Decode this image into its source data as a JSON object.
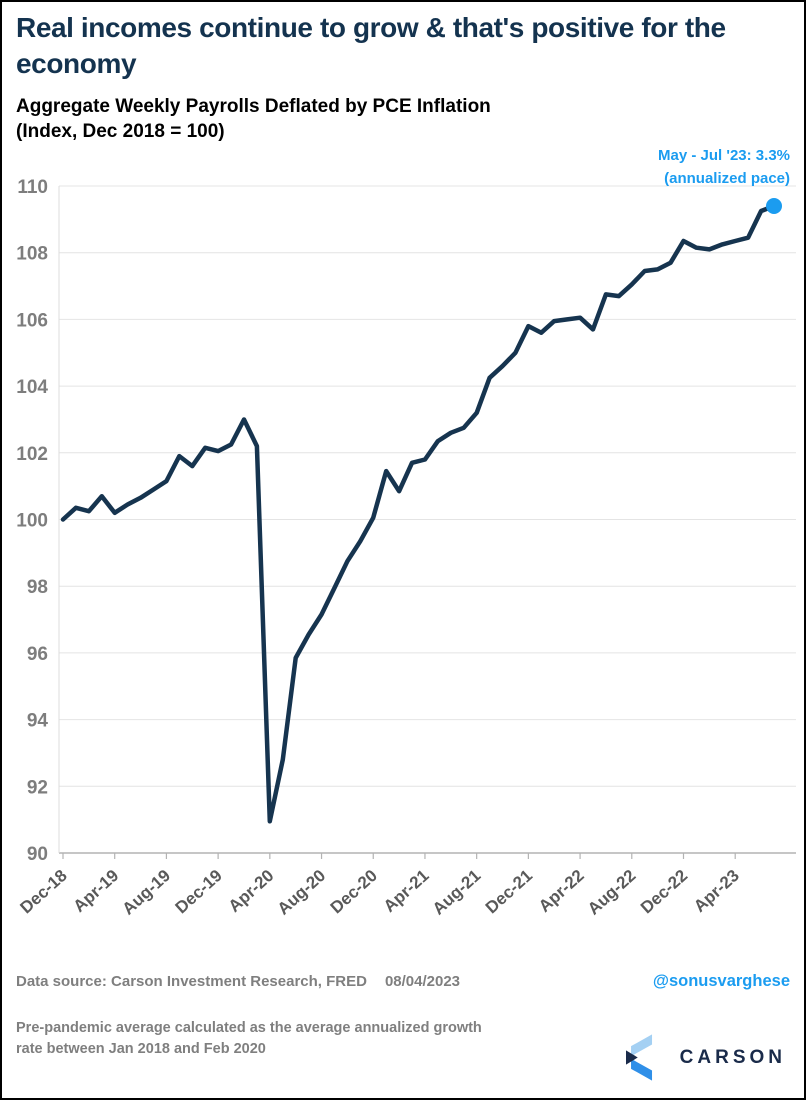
{
  "header": {
    "title": "Real incomes continue to grow & that's positive for the economy"
  },
  "chart": {
    "subtitle_line1": "Aggregate Weekly Payrolls Deflated by PCE Inflation",
    "subtitle_line2": "(Index, Dec 2018 = 100)",
    "annotation_line1": "May - Jul '23: 3.3%",
    "annotation_line2": "(annualized pace)"
  },
  "chart_data": {
    "type": "line",
    "title": "Aggregate Weekly Payrolls Deflated by PCE Inflation (Index, Dec 2018 = 100)",
    "x": [
      "Dec-18",
      "Jan-19",
      "Feb-19",
      "Mar-19",
      "Apr-19",
      "May-19",
      "Jun-19",
      "Jul-19",
      "Aug-19",
      "Sep-19",
      "Oct-19",
      "Nov-19",
      "Dec-19",
      "Jan-20",
      "Feb-20",
      "Mar-20",
      "Apr-20",
      "May-20",
      "Jun-20",
      "Jul-20",
      "Aug-20",
      "Sep-20",
      "Oct-20",
      "Nov-20",
      "Dec-20",
      "Jan-21",
      "Feb-21",
      "Mar-21",
      "Apr-21",
      "May-21",
      "Jun-21",
      "Jul-21",
      "Aug-21",
      "Sep-21",
      "Oct-21",
      "Nov-21",
      "Dec-21",
      "Jan-22",
      "Feb-22",
      "Mar-22",
      "Apr-22",
      "May-22",
      "Jun-22",
      "Jul-22",
      "Aug-22",
      "Sep-22",
      "Oct-22",
      "Nov-22",
      "Dec-22",
      "Jan-23",
      "Feb-23",
      "Mar-23",
      "Apr-23",
      "May-23",
      "Jun-23",
      "Jul-23"
    ],
    "values": [
      100.0,
      100.35,
      100.25,
      100.7,
      100.2,
      100.45,
      100.65,
      100.9,
      101.15,
      101.9,
      101.6,
      102.15,
      102.05,
      102.25,
      103.0,
      102.2,
      90.95,
      92.8,
      95.85,
      96.55,
      97.15,
      97.95,
      98.75,
      99.35,
      100.05,
      101.45,
      100.85,
      101.7,
      101.8,
      102.35,
      102.6,
      102.75,
      103.2,
      104.25,
      104.6,
      105.0,
      105.8,
      105.6,
      105.95,
      106.0,
      106.05,
      105.7,
      106.75,
      106.7,
      107.05,
      107.45,
      107.5,
      107.7,
      108.35,
      108.15,
      108.1,
      108.25,
      108.35,
      108.45,
      109.25,
      109.4
    ],
    "x_tick_labels": [
      "Dec-18",
      "Apr-19",
      "Aug-19",
      "Dec-19",
      "Apr-20",
      "Aug-20",
      "Dec-20",
      "Apr-21",
      "Aug-21",
      "Dec-21",
      "Apr-22",
      "Aug-22",
      "Dec-22",
      "Apr-23"
    ],
    "x_tick_every": 4,
    "yticks": [
      90,
      92,
      94,
      96,
      98,
      100,
      102,
      104,
      106,
      108,
      110
    ],
    "ylim": [
      90,
      110
    ],
    "grid": "horizontal",
    "legend": "none",
    "line_color": "#16344f",
    "marker_color": "#1b9cf0",
    "last_point": {
      "x": "Jul-23",
      "value": 109.4
    },
    "annotation": {
      "text": "May - Jul '23: 3.3% (annualized pace)",
      "color": "#1b9cf0",
      "position": "top-right"
    }
  },
  "footer": {
    "data_source": "Data source: Carson Investment Research, FRED",
    "date": "08/04/2023",
    "handle": "@sonusvarghese",
    "note": "Pre-pandemic average calculated as the average annualized growth rate between Jan 2018 and Feb 2020",
    "logo_text": "CARSON"
  },
  "colors": {
    "title": "#14334f",
    "line": "#16344f",
    "accent_blue": "#1b9cf0",
    "gray_text": "#7f7f7f",
    "grid": "#e4e4e4"
  }
}
